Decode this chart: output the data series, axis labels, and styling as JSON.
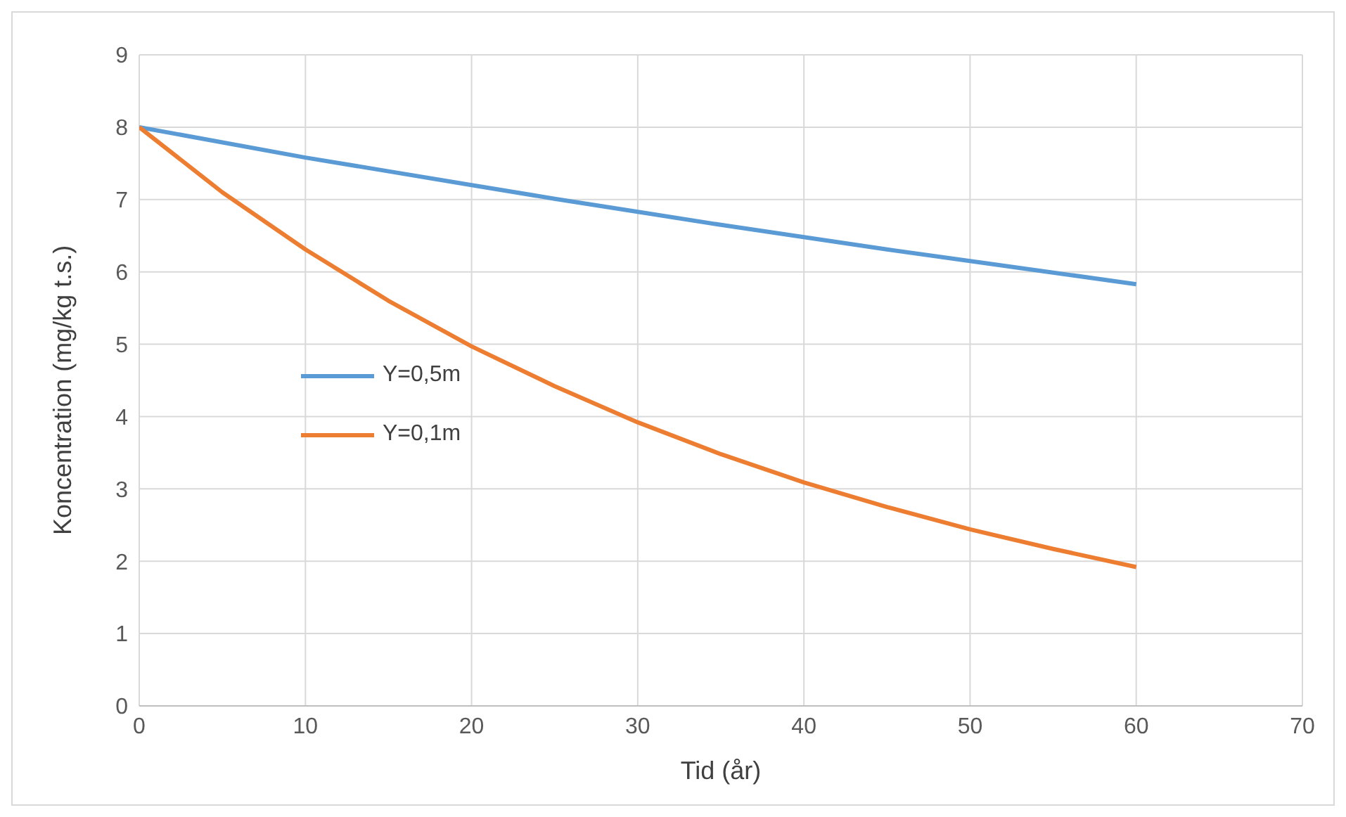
{
  "chart_data": {
    "type": "line",
    "xlabel": "Tid (år)",
    "ylabel": "Koncentration (mg/kg t.s.)",
    "x": [
      0,
      5,
      10,
      15,
      20,
      25,
      30,
      35,
      40,
      45,
      50,
      55,
      60
    ],
    "series": [
      {
        "name": "Y=0,5m",
        "color": "#5b9bd5",
        "values": [
          8,
          7.79,
          7.58,
          7.39,
          7.2,
          7.01,
          6.83,
          6.65,
          6.48,
          6.31,
          6.15,
          5.99,
          5.83
        ]
      },
      {
        "name": "Y=0,1m",
        "color": "#ed7d31",
        "values": [
          8,
          7.1,
          6.31,
          5.6,
          4.97,
          4.42,
          3.92,
          3.48,
          3.09,
          2.75,
          2.44,
          2.17,
          1.92
        ]
      }
    ],
    "xlim": [
      0,
      70
    ],
    "xticks": [
      0,
      10,
      20,
      30,
      40,
      50,
      60,
      70
    ],
    "ylim": [
      0,
      9
    ],
    "yticks": [
      0,
      1,
      2,
      3,
      4,
      5,
      6,
      7,
      8,
      9
    ],
    "grid": true,
    "legend": "left",
    "marker": "none",
    "line_style": "solid"
  }
}
